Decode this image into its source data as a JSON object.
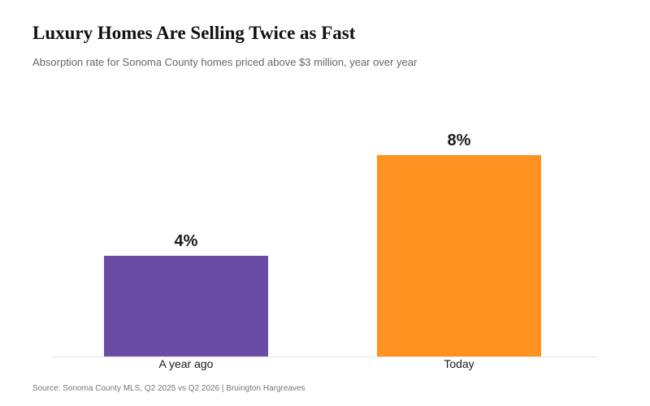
{
  "header": {
    "title": "Luxury Homes Are Selling Twice as Fast",
    "subtitle": "Absorption rate for Sonoma County homes priced above $3 million, year over year"
  },
  "footer": {
    "source": "Source: Sonoma County MLS, Q2 2025 vs Q2 2026  |  Bruington Hargreaves"
  },
  "colors": {
    "year_ago": "#6a4ca7",
    "today": "#ff9220",
    "baseline": "#e6e6e6"
  },
  "chart_data": {
    "type": "bar",
    "title": "Luxury Homes Are Selling Twice as Fast",
    "subtitle": "Absorption rate for Sonoma County homes priced above $3 million, year over year",
    "categories": [
      "A year ago",
      "Today"
    ],
    "values": [
      4,
      8
    ],
    "value_labels": [
      "4%",
      "8%"
    ],
    "unit": "%",
    "ylim": [
      0,
      10
    ],
    "grid": false,
    "legend": "none"
  }
}
